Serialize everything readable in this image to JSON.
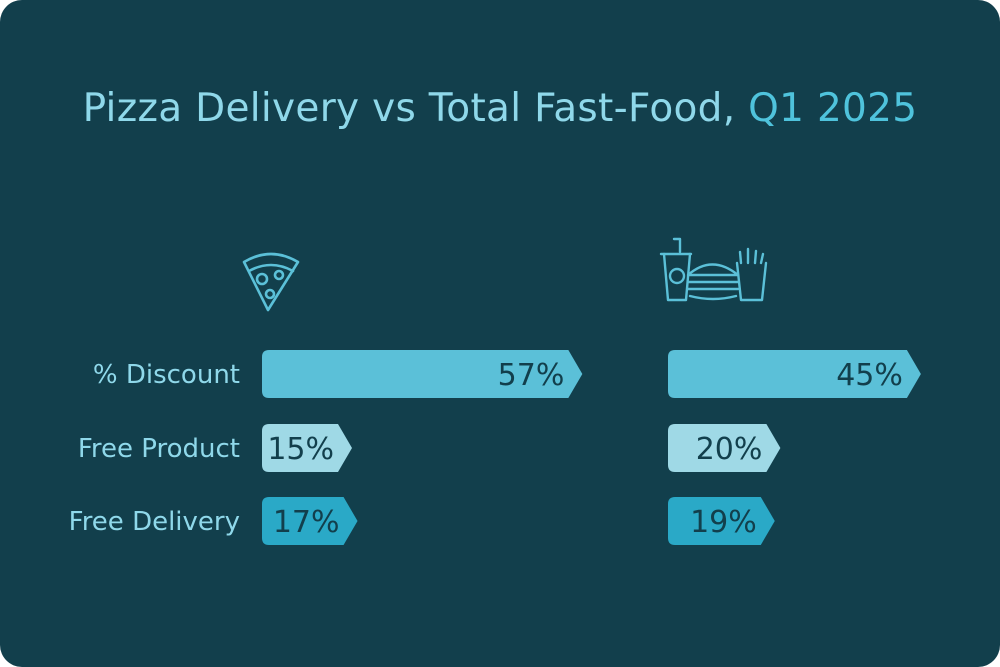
{
  "title_main": "Pizza Delivery vs Total Fast-Food, ",
  "title_highlight": "Q1 2025",
  "icons": [
    "pizza-slice-icon",
    "fast-food-icon"
  ],
  "colors": {
    "background": "#123f4c",
    "title": "#8fd8ea",
    "title_highlight": "#4fc3dc",
    "discount": "#5bc0d8",
    "free_product": "#9fd9e6",
    "free_delivery": "#2aa9c7"
  },
  "chart_data": {
    "type": "bar",
    "categories": [
      "% Discount",
      "Free Product",
      "Free Delivery"
    ],
    "series": [
      {
        "icon": "pizza-slice-icon",
        "values": [
          57,
          15,
          17
        ],
        "labels": [
          "57%",
          "15%",
          "17%"
        ]
      },
      {
        "icon": "fast-food-icon",
        "values": [
          45,
          20,
          19
        ],
        "labels": [
          "45%",
          "20%",
          "19%"
        ]
      }
    ],
    "ylim": [
      0,
      100
    ],
    "grid": false
  }
}
